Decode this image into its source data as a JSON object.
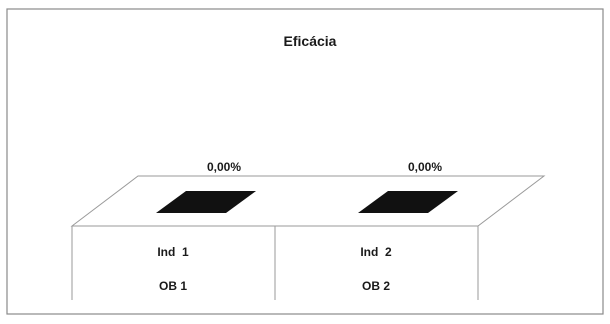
{
  "chart_data": {
    "type": "bar",
    "title": "Eficácia",
    "categories": [
      {
        "label": "Ind  1",
        "group": "OB 1"
      },
      {
        "label": "Ind  2",
        "group": "OB 2"
      }
    ],
    "values": [
      0,
      0
    ],
    "data_labels": [
      "0,00%",
      "0,00%"
    ],
    "bar_color": "#111111",
    "grid": false,
    "legend": "none",
    "view": "3d"
  },
  "colors": {
    "frame": "#8a8a8a",
    "floor": "#9a9a9a",
    "background": "#ffffff"
  }
}
